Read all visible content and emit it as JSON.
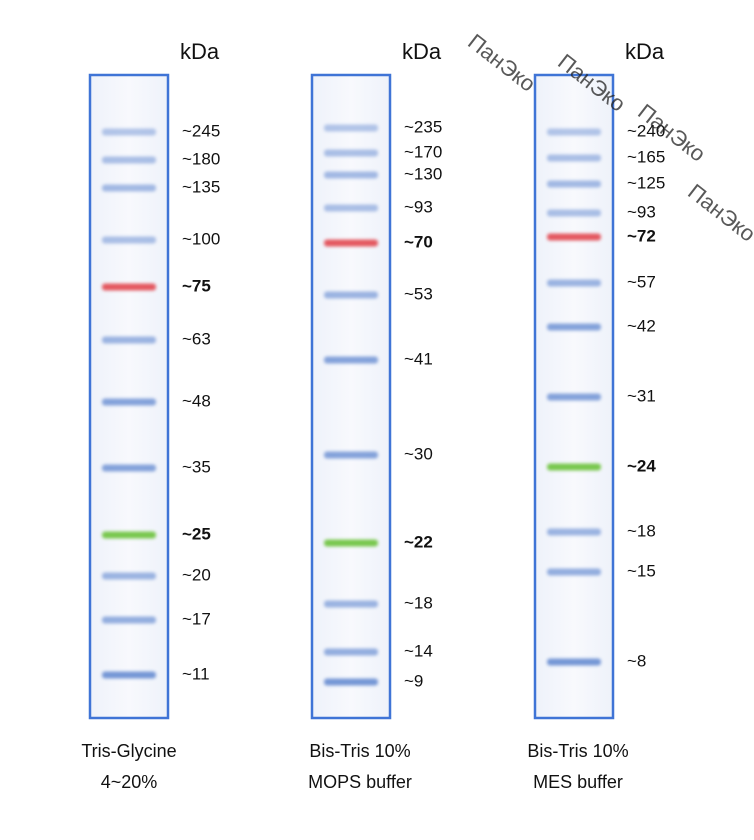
{
  "lanes": [
    {
      "unit": "kDa",
      "bands": [
        "~245",
        "~180",
        "~135",
        "~100",
        "~75",
        "~63",
        "~48",
        "~35",
        "~25",
        "~20",
        "~17",
        "~11"
      ],
      "caption": [
        "Tris-Glycine",
        "4~20%"
      ]
    },
    {
      "unit": "kDa",
      "bands": [
        "~235",
        "~170",
        "~130",
        "~93",
        "~70",
        "~53",
        "~41",
        "~30",
        "~22",
        "~18",
        "~14",
        "~9"
      ],
      "caption": [
        "Bis-Tris 10%",
        "MOPS buffer"
      ]
    },
    {
      "unit": "kDa",
      "bands": [
        "~240",
        "~165",
        "~125",
        "~93",
        "~72",
        "~57",
        "~42",
        "~31",
        "~24",
        "~18",
        "~15",
        "~8"
      ],
      "caption": [
        "Bis-Tris 10%",
        "MES buffer"
      ]
    }
  ],
  "watermark": "ПанЭко"
}
